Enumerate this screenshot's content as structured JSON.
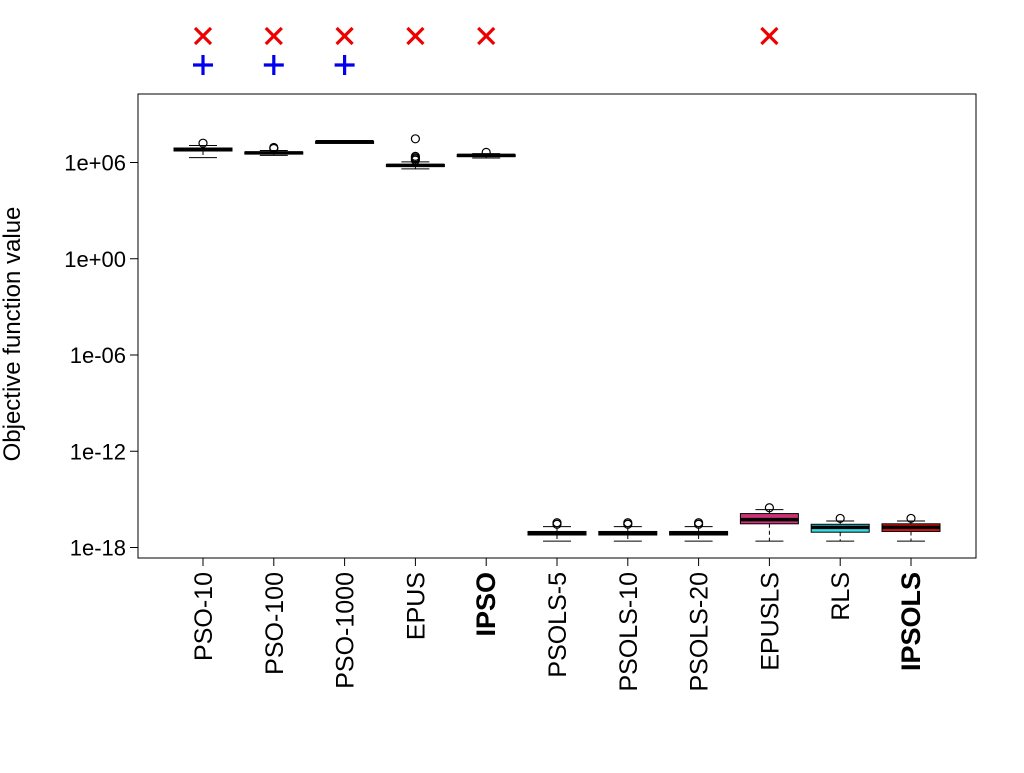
{
  "chart_data": {
    "type": "boxplot",
    "ylabel": "Objective function value",
    "yscale": "log10",
    "ylim": [
      "1e-18",
      "1e+08"
    ],
    "yticks": [
      {
        "label": "1e+06",
        "value": 1000000.0
      },
      {
        "label": "1e+00",
        "value": 1
      },
      {
        "label": "1e-06",
        "value": 1e-06
      },
      {
        "label": "1e-12",
        "value": 1e-12
      },
      {
        "label": "1e-18",
        "value": 1e-18
      }
    ],
    "categories": [
      "PSO-10",
      "PSO-100",
      "PSO-1000",
      "EPUS",
      "IPSO",
      "PSOLS-5",
      "PSOLS-10",
      "PSOLS-20",
      "EPUSLS",
      "RLS",
      "IPSOLS"
    ],
    "bold_categories": [
      "IPSO",
      "IPSOLS"
    ],
    "boxes": [
      {
        "name": "PSO-10",
        "fill": "#ffffff",
        "whisker_low": 2000000.0,
        "q1": 5200000.0,
        "median": 6500000.0,
        "q3": 8000000.0,
        "whisker_high": 11500000.0,
        "outliers": [
          16000000.0
        ]
      },
      {
        "name": "PSO-100",
        "fill": "#ffffff",
        "whisker_low": 2800000.0,
        "q1": 3600000.0,
        "median": 4000000.0,
        "q3": 4500000.0,
        "whisker_high": 5600000.0,
        "outliers": [
          7500000.0,
          8600000.0
        ]
      },
      {
        "name": "PSO-1000",
        "fill": "#ffffff",
        "whisker_low": 17000000.0,
        "q1": 18500000.0,
        "median": 19500000.0,
        "q3": 20500000.0,
        "whisker_high": 21500000.0,
        "outliers": []
      },
      {
        "name": "EPUS",
        "fill": "#ffffff",
        "whisker_low": 400000.0,
        "q1": 560000.0,
        "median": 660000.0,
        "q3": 760000.0,
        "whisker_high": 1100000.0,
        "outliers": [
          1400000.0,
          1700000.0,
          2000000.0,
          2400000.0,
          30000000.0
        ]
      },
      {
        "name": "IPSO",
        "fill": "#ffffff",
        "whisker_low": 1900000.0,
        "q1": 2500000.0,
        "median": 2800000.0,
        "q3": 3100000.0,
        "whisker_high": 3600000.0,
        "outliers": [
          4300000.0
        ]
      },
      {
        "name": "PSOLS-5",
        "fill": "#ffffff",
        "whisker_low": 2.5e-18,
        "q1": 6e-18,
        "median": 8e-18,
        "q3": 1e-17,
        "whisker_high": 2e-17,
        "outliers": [
          2.8e-17,
          3.5e-17
        ]
      },
      {
        "name": "PSOLS-10",
        "fill": "#ffffff",
        "whisker_low": 2.5e-18,
        "q1": 6e-18,
        "median": 8e-18,
        "q3": 1e-17,
        "whisker_high": 2e-17,
        "outliers": [
          2.8e-17,
          3.5e-17
        ]
      },
      {
        "name": "PSOLS-20",
        "fill": "#ffffff",
        "whisker_low": 2.5e-18,
        "q1": 6e-18,
        "median": 8e-18,
        "q3": 1e-17,
        "whisker_high": 2e-17,
        "outliers": [
          2.8e-17,
          3.5e-17
        ]
      },
      {
        "name": "EPUSLS",
        "fill": "#cc3377",
        "whisker_low": 2.5e-18,
        "q1": 3e-17,
        "median": 5.5e-17,
        "q3": 1.3e-16,
        "whisker_high": 2.3e-16,
        "outliers": [
          3e-16
        ]
      },
      {
        "name": "RLS",
        "fill": "#33dde6",
        "whisker_low": 2.5e-18,
        "q1": 9e-18,
        "median": 1.8e-17,
        "q3": 2.8e-17,
        "whisker_high": 4.5e-17,
        "outliers": [
          6.5e-17
        ]
      },
      {
        "name": "IPSOLS",
        "fill": "#dd1111",
        "whisker_low": 2.5e-18,
        "q1": 1e-17,
        "median": 1.8e-17,
        "q3": 3e-17,
        "whisker_high": 4.5e-17,
        "outliers": [
          6.5e-17
        ]
      }
    ],
    "markers": {
      "cross_x": {
        "symbol": "×",
        "color": "#ee0000",
        "categories": [
          "PSO-10",
          "PSO-100",
          "PSO-1000",
          "EPUS",
          "IPSO",
          "EPUSLS"
        ]
      },
      "plus": {
        "symbol": "+",
        "color": "#0000ee",
        "categories": [
          "PSO-10",
          "PSO-100",
          "PSO-1000"
        ]
      }
    },
    "grid": false,
    "legend": "none"
  }
}
